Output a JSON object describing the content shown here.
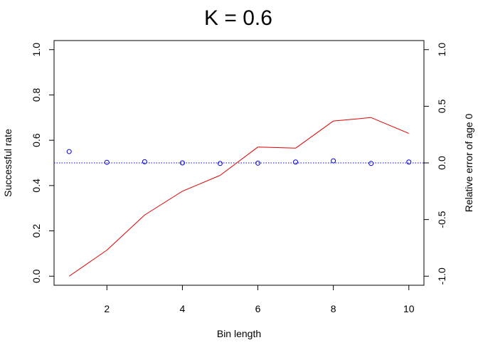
{
  "chart_data": {
    "type": "line",
    "title": "K = 0.6",
    "xlabel": "Bin length",
    "ylabel": "Successful rate",
    "ylabel_right": "Relative error of age 0",
    "xlim": [
      0.6,
      10.4
    ],
    "ylim": [
      -0.04,
      1.04
    ],
    "ylim_right": [
      -1.08,
      1.08
    ],
    "x_ticks": [
      "2",
      "4",
      "6",
      "8",
      "10"
    ],
    "y_ticks": [
      "0.0",
      "0.2",
      "0.4",
      "0.6",
      "0.8",
      "1.0"
    ],
    "y_ticks_right": [
      "-1.0",
      "-0.5",
      "0.0",
      "0.5",
      "1.0"
    ],
    "grid": false,
    "legend": "none",
    "series": [
      {
        "axis": "left",
        "style": "line",
        "color": "#e00000",
        "x": [
          1,
          2,
          3,
          4,
          5,
          6,
          7,
          8,
          9,
          10
        ],
        "values": [
          0.0,
          0.115,
          0.27,
          0.375,
          0.445,
          0.57,
          0.565,
          0.685,
          0.7,
          0.63
        ]
      },
      {
        "axis": "right",
        "style": "points",
        "color": "#0000dd",
        "x": [
          1,
          2,
          3,
          4,
          5,
          6,
          7,
          8,
          9,
          10
        ],
        "values": [
          0.1,
          0.005,
          0.01,
          0.0,
          -0.005,
          -0.002,
          0.008,
          0.018,
          -0.005,
          0.008
        ]
      }
    ],
    "reference_line": {
      "axis": "right",
      "value": 0.0,
      "style": "dotted",
      "color": "#0000dd"
    }
  }
}
